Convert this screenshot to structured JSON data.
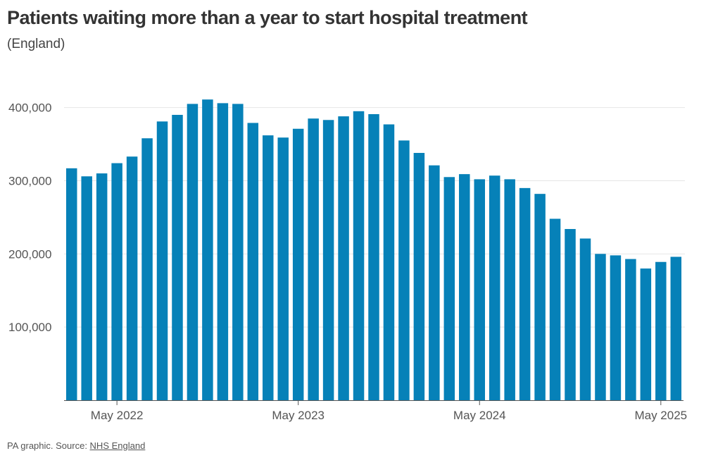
{
  "header": {
    "title": "Patients waiting more than a year to start hospital treatment",
    "subtitle": "(England)"
  },
  "footer": {
    "prefix": "PA graphic. Source: ",
    "link_label": "NHS England"
  },
  "chart_data": {
    "type": "bar",
    "title": "Patients waiting more than a year to start hospital treatment",
    "subtitle": "(England)",
    "color": "#0681b8",
    "grid": true,
    "ylim": [
      0,
      420000
    ],
    "yticks": [
      100000,
      200000,
      300000,
      400000
    ],
    "ytick_labels": [
      "100,000",
      "200,000",
      "300,000",
      "400,000"
    ],
    "xtick_labels": [
      "May 2022",
      "May 2023",
      "May 2024",
      "May 2025"
    ],
    "xtick_index": [
      3,
      15,
      27,
      39
    ],
    "categories": [
      "Feb 2022",
      "Mar 2022",
      "Apr 2022",
      "May 2022",
      "Jun 2022",
      "Jul 2022",
      "Aug 2022",
      "Sep 2022",
      "Oct 2022",
      "Nov 2022",
      "Dec 2022",
      "Jan 2023",
      "Feb 2023",
      "Mar 2023",
      "Apr 2023",
      "May 2023",
      "Jun 2023",
      "Jul 2023",
      "Aug 2023",
      "Sep 2023",
      "Oct 2023",
      "Nov 2023",
      "Dec 2023",
      "Jan 2024",
      "Feb 2024",
      "Mar 2024",
      "Apr 2024",
      "May 2024",
      "Jun 2024",
      "Jul 2024",
      "Aug 2024",
      "Sep 2024",
      "Oct 2024",
      "Nov 2024",
      "Dec 2024",
      "Jan 2025",
      "Feb 2025",
      "Mar 2025",
      "Apr 2025",
      "May 2025",
      "Jun 2025"
    ],
    "values": [
      317000,
      306000,
      310000,
      324000,
      333000,
      358000,
      381000,
      390000,
      405000,
      411000,
      406000,
      405000,
      379000,
      362000,
      359000,
      371000,
      385000,
      383000,
      388000,
      395000,
      391000,
      377000,
      355000,
      338000,
      321000,
      305000,
      309000,
      302000,
      307000,
      302000,
      290000,
      282000,
      248000,
      234000,
      221000,
      200000,
      198000,
      193000,
      180000,
      189000,
      196000
    ]
  }
}
